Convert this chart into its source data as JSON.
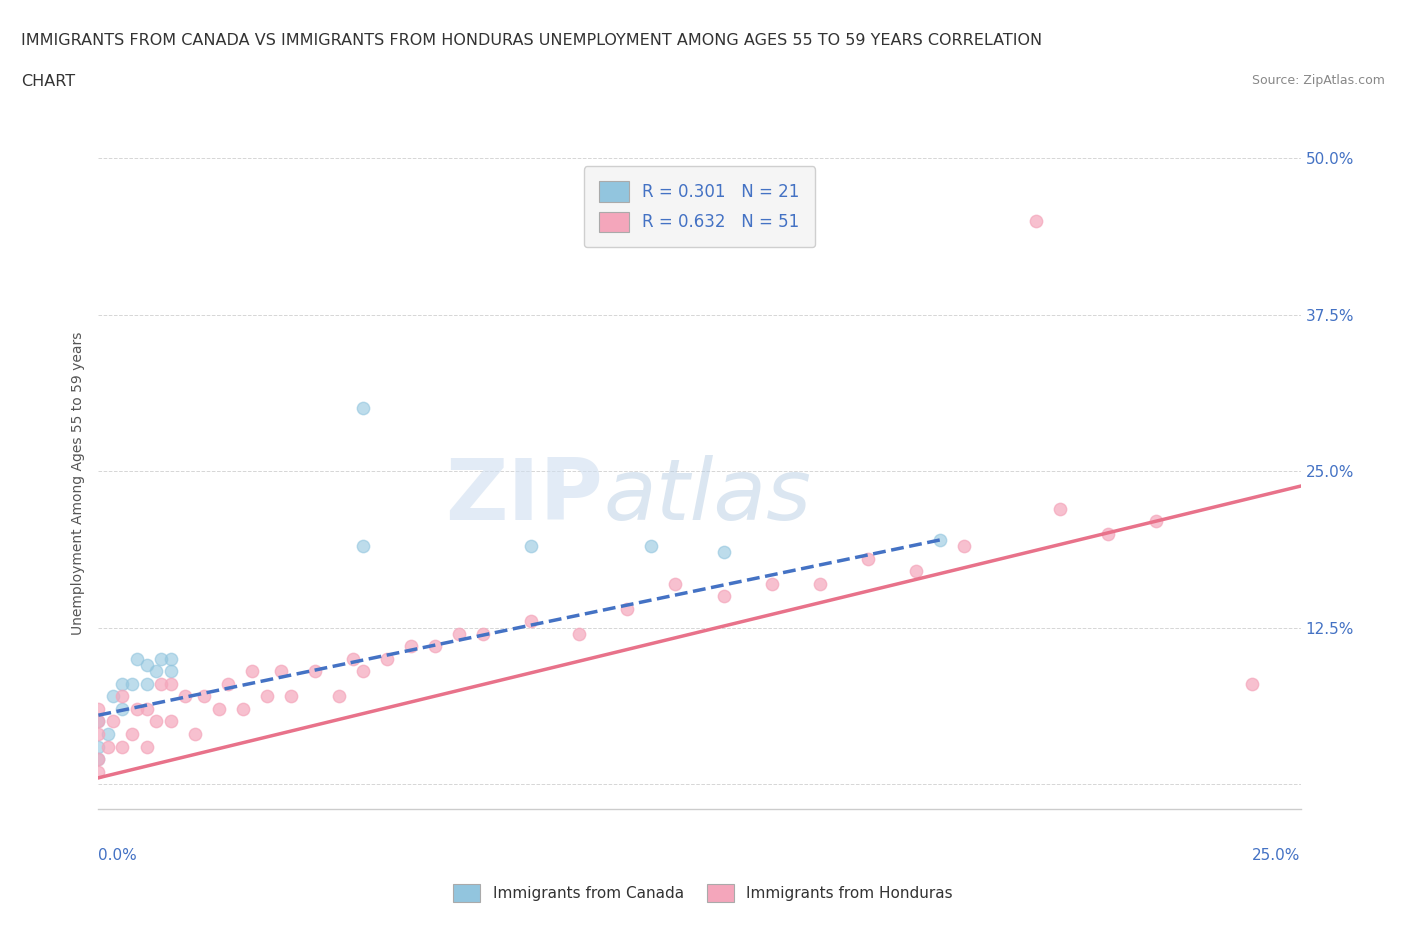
{
  "title_line1": "IMMIGRANTS FROM CANADA VS IMMIGRANTS FROM HONDURAS UNEMPLOYMENT AMONG AGES 55 TO 59 YEARS CORRELATION",
  "title_line2": "CHART",
  "source": "Source: ZipAtlas.com",
  "ylabel": "Unemployment Among Ages 55 to 59 years",
  "x_min": 0.0,
  "x_max": 0.25,
  "y_min": -0.02,
  "y_max": 0.5,
  "y_ticks": [
    0.0,
    0.125,
    0.25,
    0.375,
    0.5
  ],
  "y_tick_labels": [
    "",
    "12.5%",
    "25.0%",
    "37.5%",
    "50.0%"
  ],
  "canada_R": 0.301,
  "canada_N": 21,
  "honduras_R": 0.632,
  "honduras_N": 51,
  "canada_color": "#92c5de",
  "honduras_color": "#f4a6bb",
  "canada_line_color": "#4472c4",
  "honduras_line_color": "#e8728a",
  "canada_scatter_x": [
    0.0,
    0.0,
    0.0,
    0.002,
    0.003,
    0.005,
    0.005,
    0.007,
    0.008,
    0.01,
    0.01,
    0.012,
    0.013,
    0.015,
    0.015,
    0.055,
    0.055,
    0.09,
    0.115,
    0.13,
    0.175
  ],
  "canada_scatter_y": [
    0.02,
    0.03,
    0.05,
    0.04,
    0.07,
    0.06,
    0.08,
    0.08,
    0.1,
    0.08,
    0.095,
    0.09,
    0.1,
    0.09,
    0.1,
    0.3,
    0.19,
    0.19,
    0.19,
    0.185,
    0.195
  ],
  "honduras_scatter_x": [
    0.0,
    0.0,
    0.0,
    0.0,
    0.0,
    0.002,
    0.003,
    0.005,
    0.005,
    0.007,
    0.008,
    0.01,
    0.01,
    0.012,
    0.013,
    0.015,
    0.015,
    0.018,
    0.02,
    0.022,
    0.025,
    0.027,
    0.03,
    0.032,
    0.035,
    0.038,
    0.04,
    0.045,
    0.05,
    0.053,
    0.055,
    0.06,
    0.065,
    0.07,
    0.075,
    0.08,
    0.09,
    0.1,
    0.11,
    0.12,
    0.13,
    0.14,
    0.15,
    0.16,
    0.17,
    0.18,
    0.195,
    0.2,
    0.21,
    0.22,
    0.24
  ],
  "honduras_scatter_y": [
    0.01,
    0.02,
    0.04,
    0.05,
    0.06,
    0.03,
    0.05,
    0.03,
    0.07,
    0.04,
    0.06,
    0.03,
    0.06,
    0.05,
    0.08,
    0.05,
    0.08,
    0.07,
    0.04,
    0.07,
    0.06,
    0.08,
    0.06,
    0.09,
    0.07,
    0.09,
    0.07,
    0.09,
    0.07,
    0.1,
    0.09,
    0.1,
    0.11,
    0.11,
    0.12,
    0.12,
    0.13,
    0.12,
    0.14,
    0.16,
    0.15,
    0.16,
    0.16,
    0.18,
    0.17,
    0.19,
    0.45,
    0.22,
    0.2,
    0.21,
    0.08
  ],
  "canada_line_x0": 0.0,
  "canada_line_x1": 0.175,
  "canada_line_y0": 0.055,
  "canada_line_y1": 0.195,
  "honduras_line_x0": 0.0,
  "honduras_line_x1": 0.25,
  "honduras_line_y0": 0.005,
  "honduras_line_y1": 0.238,
  "watermark_zip": "ZIP",
  "watermark_atlas": "atlas",
  "legend_canada_label": "R = 0.301   N = 21",
  "legend_honduras_label": "R = 0.632   N = 51",
  "bottom_legend_canada": "Immigrants from Canada",
  "bottom_legend_honduras": "Immigrants from Honduras",
  "background_color": "#ffffff",
  "grid_color": "#cccccc"
}
